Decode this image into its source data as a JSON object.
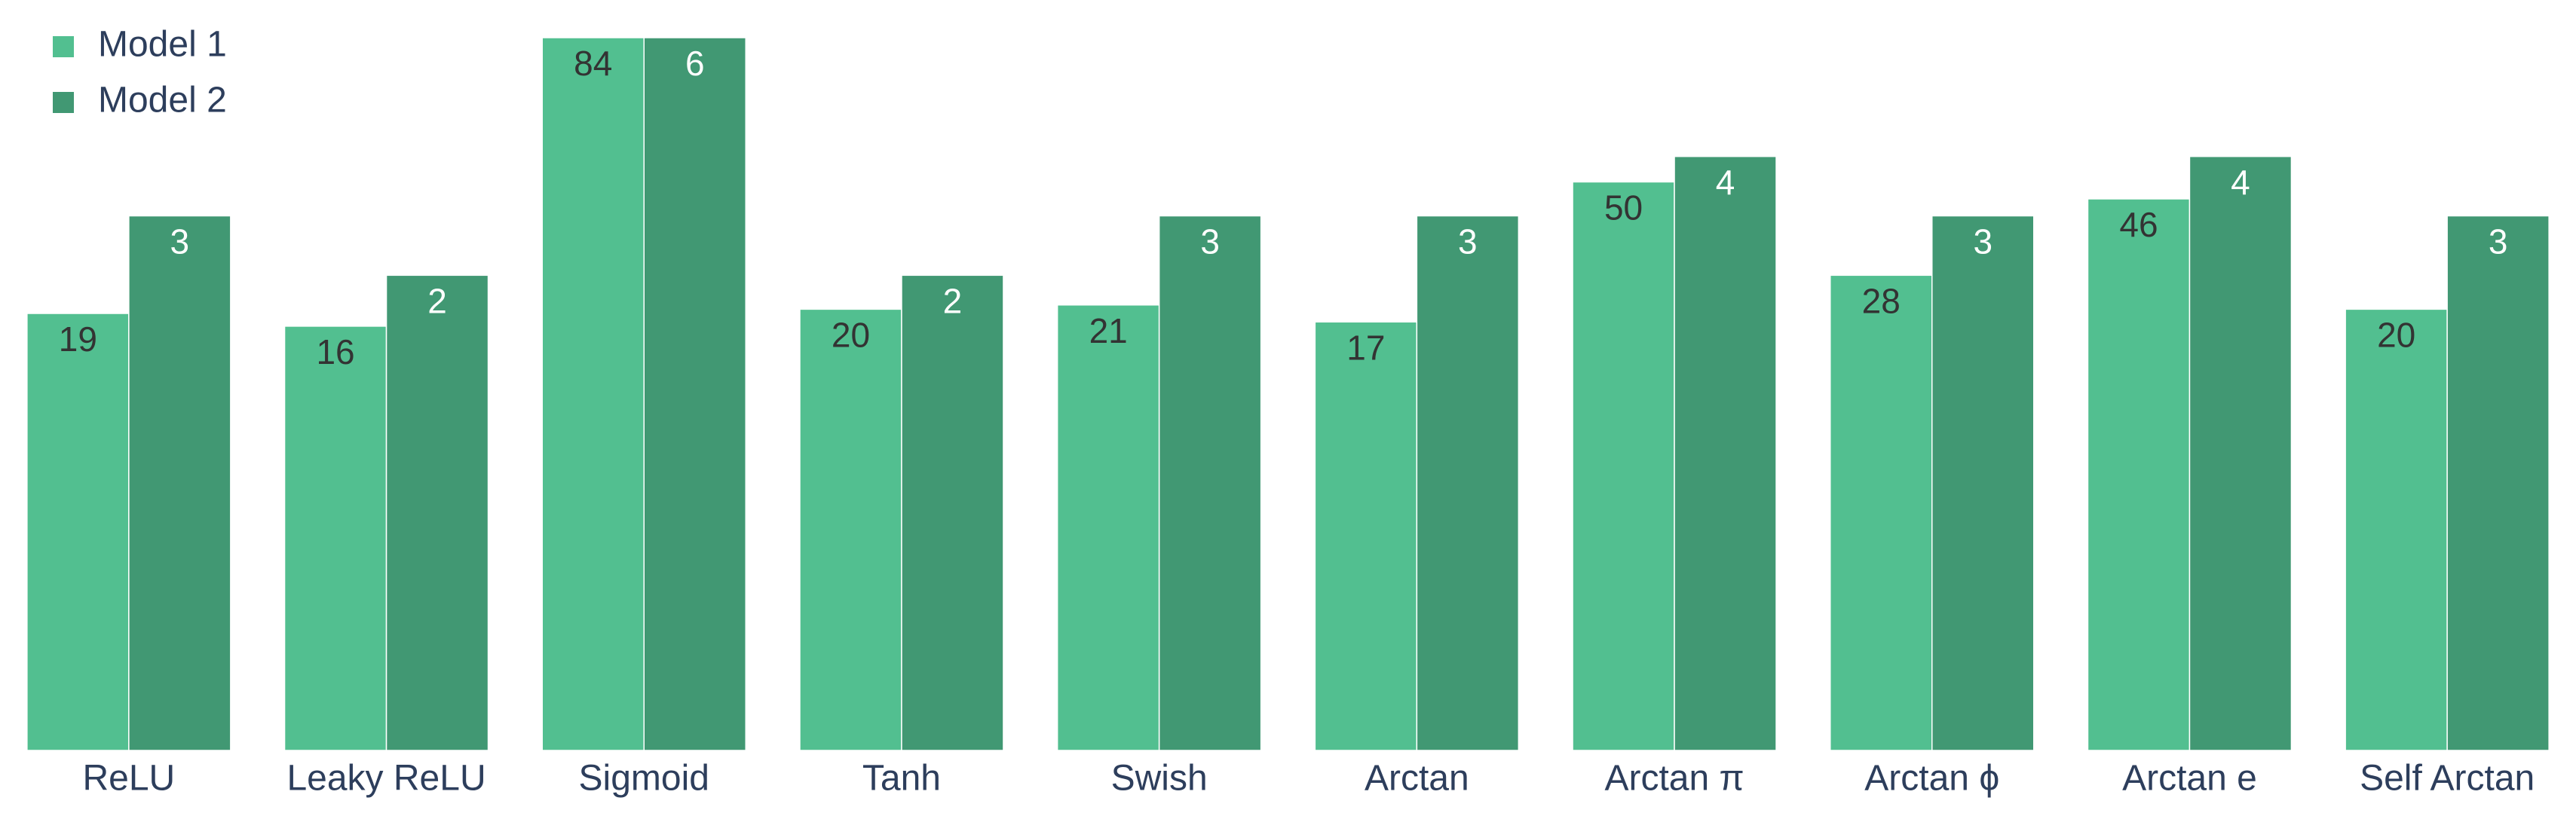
{
  "chart_data": {
    "type": "bar",
    "categories": [
      "ReLU",
      "Leaky ReLU",
      "Sigmoid",
      "Tanh",
      "Swish",
      "Arctan",
      "Arctan π",
      "Arctan ϕ",
      "Arctan e",
      "Self Arctan"
    ],
    "series": [
      {
        "name": "Model 1",
        "color": "#52bf90",
        "label_color": "#333333",
        "axis": "y",
        "values": [
          19,
          16,
          84,
          20,
          21,
          17,
          50,
          28,
          46,
          20
        ]
      },
      {
        "name": "Model 2",
        "color": "#419873",
        "label_color": "#ffffff",
        "axis": "y2",
        "values": [
          3,
          2,
          6,
          2,
          3,
          3,
          4,
          3,
          4,
          3
        ]
      }
    ],
    "ylim": [
      -84,
      84
    ],
    "y2lim": [
      -6,
      6
    ],
    "legend": "top-left",
    "grid": false
  }
}
